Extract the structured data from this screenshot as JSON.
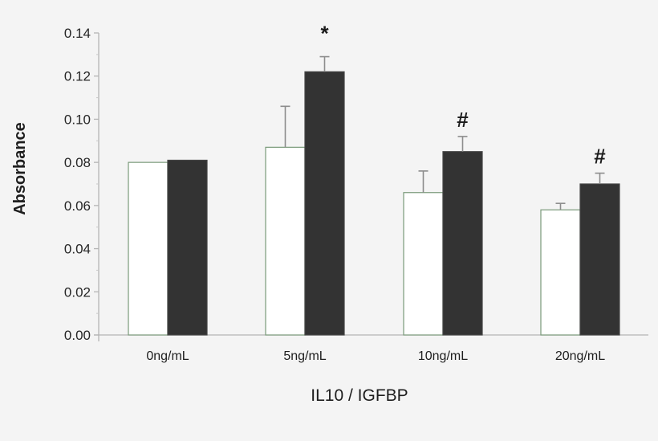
{
  "chart_data": {
    "type": "bar",
    "title": "",
    "xlabel": "IL10 / IGFBP",
    "ylabel": "Absorbance",
    "ylim": [
      0,
      0.14
    ],
    "yticks": [
      "0.00",
      "0.02",
      "0.04",
      "0.06",
      "0.08",
      "0.10",
      "0.12",
      "0.14"
    ],
    "grid": false,
    "legend": null,
    "categories": [
      "0ng/mL",
      "5ng/mL",
      "10ng/mL",
      "20ng/mL"
    ],
    "series": [
      {
        "name": "white",
        "color": "#ffffff",
        "edge": "#7a9a7a",
        "values": [
          0.08,
          0.087,
          0.066,
          0.058
        ],
        "error": [
          0,
          0.019,
          0.01,
          0.003
        ]
      },
      {
        "name": "black",
        "color": "#333333",
        "edge": "#444444",
        "values": [
          0.081,
          0.122,
          0.085,
          0.07
        ],
        "error": [
          0,
          0.007,
          0.007,
          0.005
        ]
      }
    ],
    "annotations": [
      {
        "category": "5ng/mL",
        "series": "black",
        "text": "*"
      },
      {
        "category": "10ng/mL",
        "series": "black",
        "text": "#"
      },
      {
        "category": "20ng/mL",
        "series": "black",
        "text": "#"
      }
    ]
  }
}
